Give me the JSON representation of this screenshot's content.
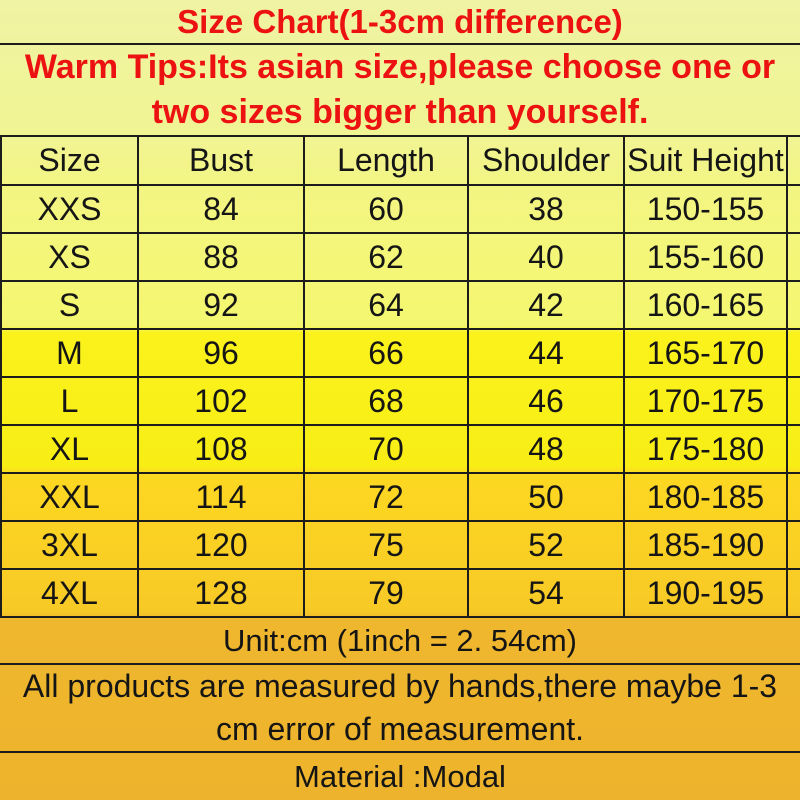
{
  "chart_data": {
    "type": "table",
    "title": "Size Chart(1-3cm difference)",
    "subtitle": "Warm Tips:Its asian size,please choose one or two sizes bigger than yourself.",
    "columns": [
      "Size",
      "Bust",
      "Length",
      "Shoulder",
      "Suit Height"
    ],
    "rows": [
      [
        "XXS",
        "84",
        "60",
        "38",
        "150-155"
      ],
      [
        "XS",
        "88",
        "62",
        "40",
        "155-160"
      ],
      [
        "S",
        "92",
        "64",
        "42",
        "160-165"
      ],
      [
        "M",
        "96",
        "66",
        "44",
        "165-170"
      ],
      [
        "L",
        "102",
        "68",
        "46",
        "170-175"
      ],
      [
        "XL",
        "108",
        "70",
        "48",
        "175-180"
      ],
      [
        "XXL",
        "114",
        "72",
        "50",
        "180-185"
      ],
      [
        "3XL",
        "120",
        "75",
        "52",
        "185-190"
      ],
      [
        "4XL",
        "128",
        "79",
        "54",
        "190-195"
      ]
    ],
    "unit": "cm",
    "footnotes": [
      "Unit:cm (1inch = 2. 54cm)",
      "All products are measured by hands,there maybe 1-3 cm error of measurement.",
      "Material :Modal"
    ]
  },
  "colors": {
    "warning_red": "#ec1212",
    "text_black": "#151515",
    "grid_line": "#1c1c1c",
    "bg_top_pale_yellow": "#eff3a3",
    "bg_light_yellow": "#f4f679",
    "bg_bright_yellow": "#fbf21c",
    "bg_gold": "#fdd821",
    "bg_amber": "#eeb52e"
  }
}
